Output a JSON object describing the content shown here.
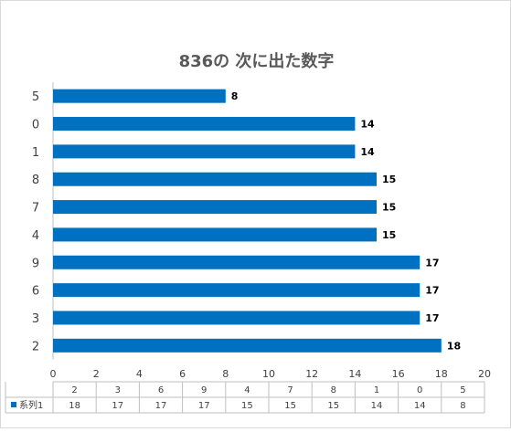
{
  "chart_data": {
    "type": "bar",
    "orientation": "horizontal",
    "title": "836の 次に出た数字",
    "categories": [
      "2",
      "3",
      "6",
      "9",
      "4",
      "7",
      "8",
      "1",
      "0",
      "5"
    ],
    "series": [
      {
        "name": "系列1",
        "values": [
          18,
          17,
          17,
          17,
          15,
          15,
          15,
          14,
          14,
          8
        ]
      }
    ],
    "xlim": [
      0,
      20
    ],
    "x_ticks": [
      0,
      2,
      4,
      6,
      8,
      10,
      12,
      14,
      16,
      18,
      20
    ],
    "grid": false,
    "data_labels": true,
    "data_table": true,
    "bar_color": "#0070C0",
    "text_color": "#404040",
    "axis_color": "#bfbfbf"
  }
}
